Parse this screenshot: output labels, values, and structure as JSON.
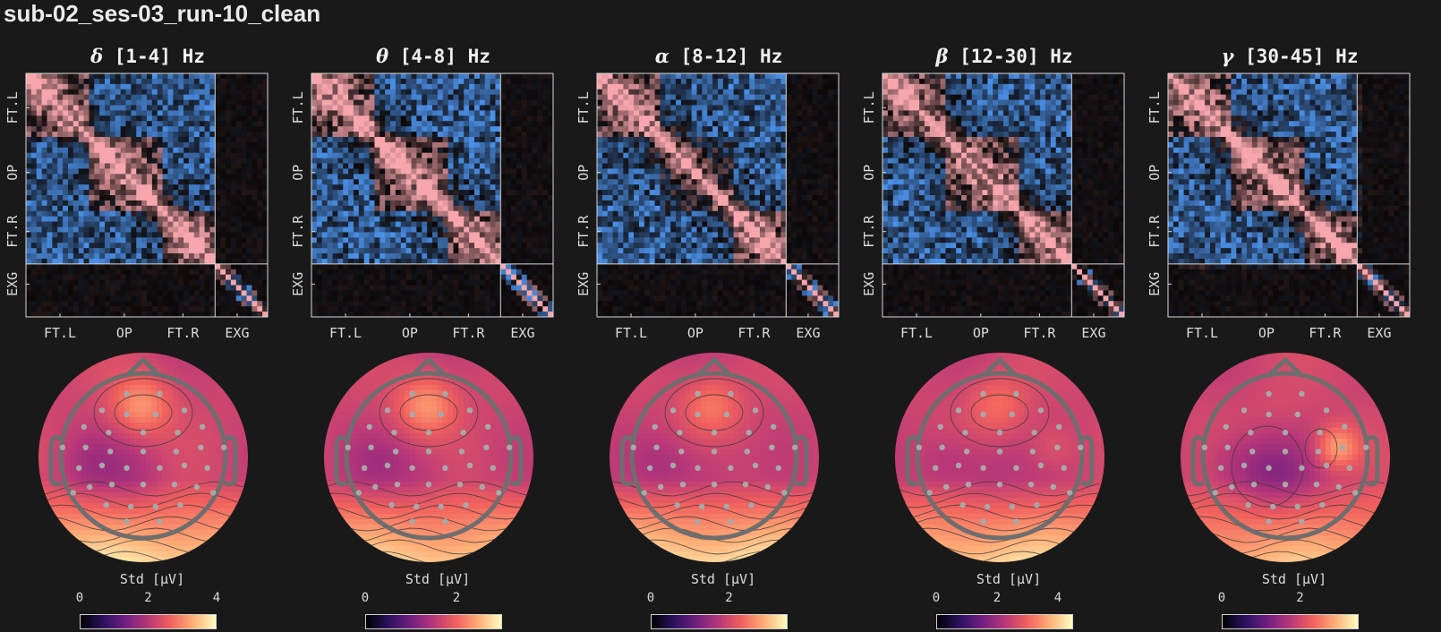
{
  "figure": {
    "title": "sub-02_ses-03_run-10_clean"
  },
  "colors": {
    "background": "#191919",
    "positive": "#f4a0a8",
    "negative": "#4b8fe8",
    "head_outline": "#6e6e6e",
    "sensor": "#a8a8a8"
  },
  "chart_data": [
    {
      "type": "heatmap",
      "band": "delta",
      "greek": "δ",
      "range": "[1-4] Hz",
      "title": "δ [1-4] Hz",
      "row_labels": [
        "FT.L",
        "OP",
        "FT.R",
        "EXG"
      ],
      "col_labels": [
        "FT.L",
        "OP",
        "FT.R",
        "EXG"
      ],
      "colorbar_label": "Std [μV]",
      "colorbar_ticks": [
        "0",
        "2",
        "4"
      ],
      "colorbar_range": [
        0,
        4
      ],
      "topomap": {
        "front_hotspot": 1.0,
        "posterior_level": 1.0,
        "central_low": 0.35,
        "right_hotspot": 0.0
      }
    },
    {
      "type": "heatmap",
      "band": "theta",
      "greek": "θ",
      "range": "[4-8] Hz",
      "title": "θ [4-8] Hz",
      "row_labels": [
        "FT.L",
        "OP",
        "FT.R",
        "EXG"
      ],
      "col_labels": [
        "FT.L",
        "OP",
        "FT.R",
        "EXG"
      ],
      "colorbar_label": "Std [μV]",
      "colorbar_ticks": [
        "0",
        "2"
      ],
      "colorbar_range": [
        0,
        3
      ],
      "topomap": {
        "front_hotspot": 1.0,
        "posterior_level": 0.95,
        "central_low": 0.3,
        "right_hotspot": 0.0
      }
    },
    {
      "type": "heatmap",
      "band": "alpha",
      "greek": "α",
      "range": "[8-12] Hz",
      "title": "α [8-12] Hz",
      "row_labels": [
        "FT.L",
        "OP",
        "FT.R",
        "EXG"
      ],
      "col_labels": [
        "FT.L",
        "OP",
        "FT.R",
        "EXG"
      ],
      "colorbar_label": "Std [μV]",
      "colorbar_ticks": [
        "0",
        "2"
      ],
      "colorbar_range": [
        0,
        3.5
      ],
      "topomap": {
        "front_hotspot": 0.7,
        "posterior_level": 1.05,
        "central_low": 0.3,
        "right_hotspot": 0.0
      }
    },
    {
      "type": "heatmap",
      "band": "beta",
      "greek": "β",
      "range": "[12-30] Hz",
      "title": "β [12-30] Hz",
      "row_labels": [
        "FT.L",
        "OP",
        "FT.R",
        "EXG"
      ],
      "col_labels": [
        "FT.L",
        "OP",
        "FT.R",
        "EXG"
      ],
      "colorbar_label": "Std [μV]",
      "colorbar_ticks": [
        "0",
        "2",
        "4"
      ],
      "colorbar_range": [
        0,
        4.5
      ],
      "topomap": {
        "front_hotspot": 0.6,
        "posterior_level": 0.95,
        "central_low": 0.3,
        "right_hotspot": 0.3
      }
    },
    {
      "type": "heatmap",
      "band": "gamma",
      "greek": "γ",
      "range": "[30-45] Hz",
      "title": "γ [30-45] Hz",
      "row_labels": [
        "FT.L",
        "OP",
        "FT.R",
        "EXG"
      ],
      "col_labels": [
        "FT.L",
        "OP",
        "FT.R",
        "EXG"
      ],
      "colorbar_label": "Std [μV]",
      "colorbar_ticks": [
        "0",
        "2"
      ],
      "colorbar_range": [
        0,
        3.5
      ],
      "topomap": {
        "front_hotspot": 0.1,
        "posterior_level": 0.8,
        "central_low": 0.7,
        "right_hotspot": 1.0
      }
    }
  ]
}
